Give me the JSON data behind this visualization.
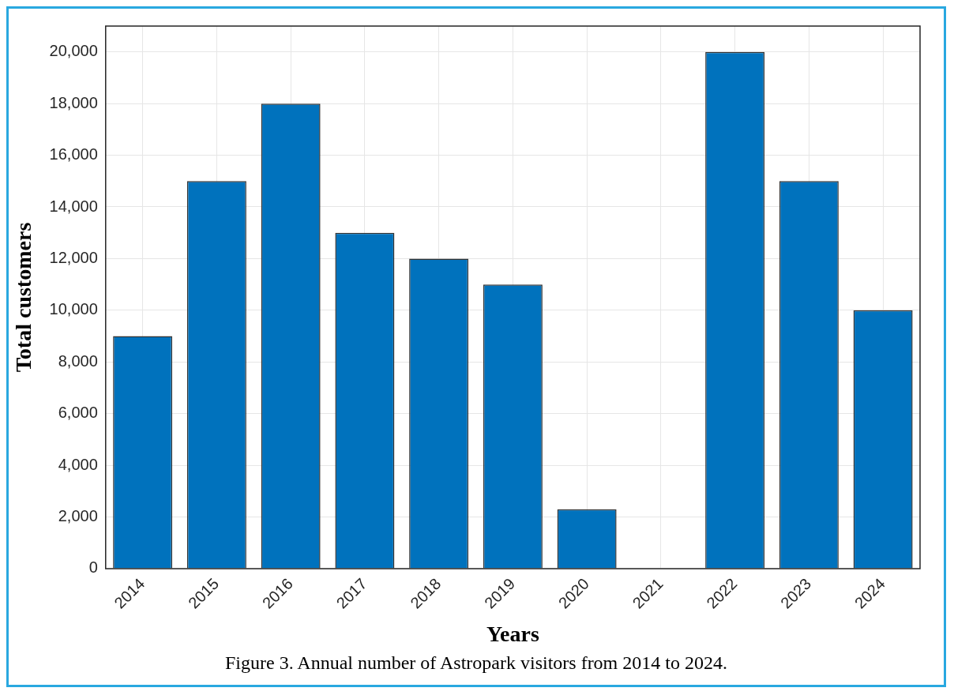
{
  "chart_data": {
    "type": "bar",
    "xlabel": "Years",
    "ylabel": "Total customers",
    "categories": [
      "2014",
      "2015",
      "2016",
      "2017",
      "2018",
      "2019",
      "2020",
      "2021",
      "2022",
      "2023",
      "2024"
    ],
    "values": [
      9000,
      15000,
      18000,
      13000,
      12000,
      11000,
      2300,
      0,
      20000,
      15000,
      10000
    ],
    "color": "#0072bd",
    "ylim": [
      0,
      21000
    ],
    "yticks": [
      {
        "value": 0,
        "label": "0"
      },
      {
        "value": 2000,
        "label": "2,000"
      },
      {
        "value": 4000,
        "label": "4,000"
      },
      {
        "value": 6000,
        "label": "6,000"
      },
      {
        "value": 8000,
        "label": "8,000"
      },
      {
        "value": 10000,
        "label": "10,000"
      },
      {
        "value": 12000,
        "label": "12,000"
      },
      {
        "value": 14000,
        "label": "14,000"
      },
      {
        "value": 16000,
        "label": "16,000"
      },
      {
        "value": 18000,
        "label": "18,000"
      },
      {
        "value": 20000,
        "label": "20,000"
      }
    ],
    "grid": true,
    "annotations": [
      "Figure 3. Annual number of Astropark visitors from 2014 to 2024."
    ]
  }
}
